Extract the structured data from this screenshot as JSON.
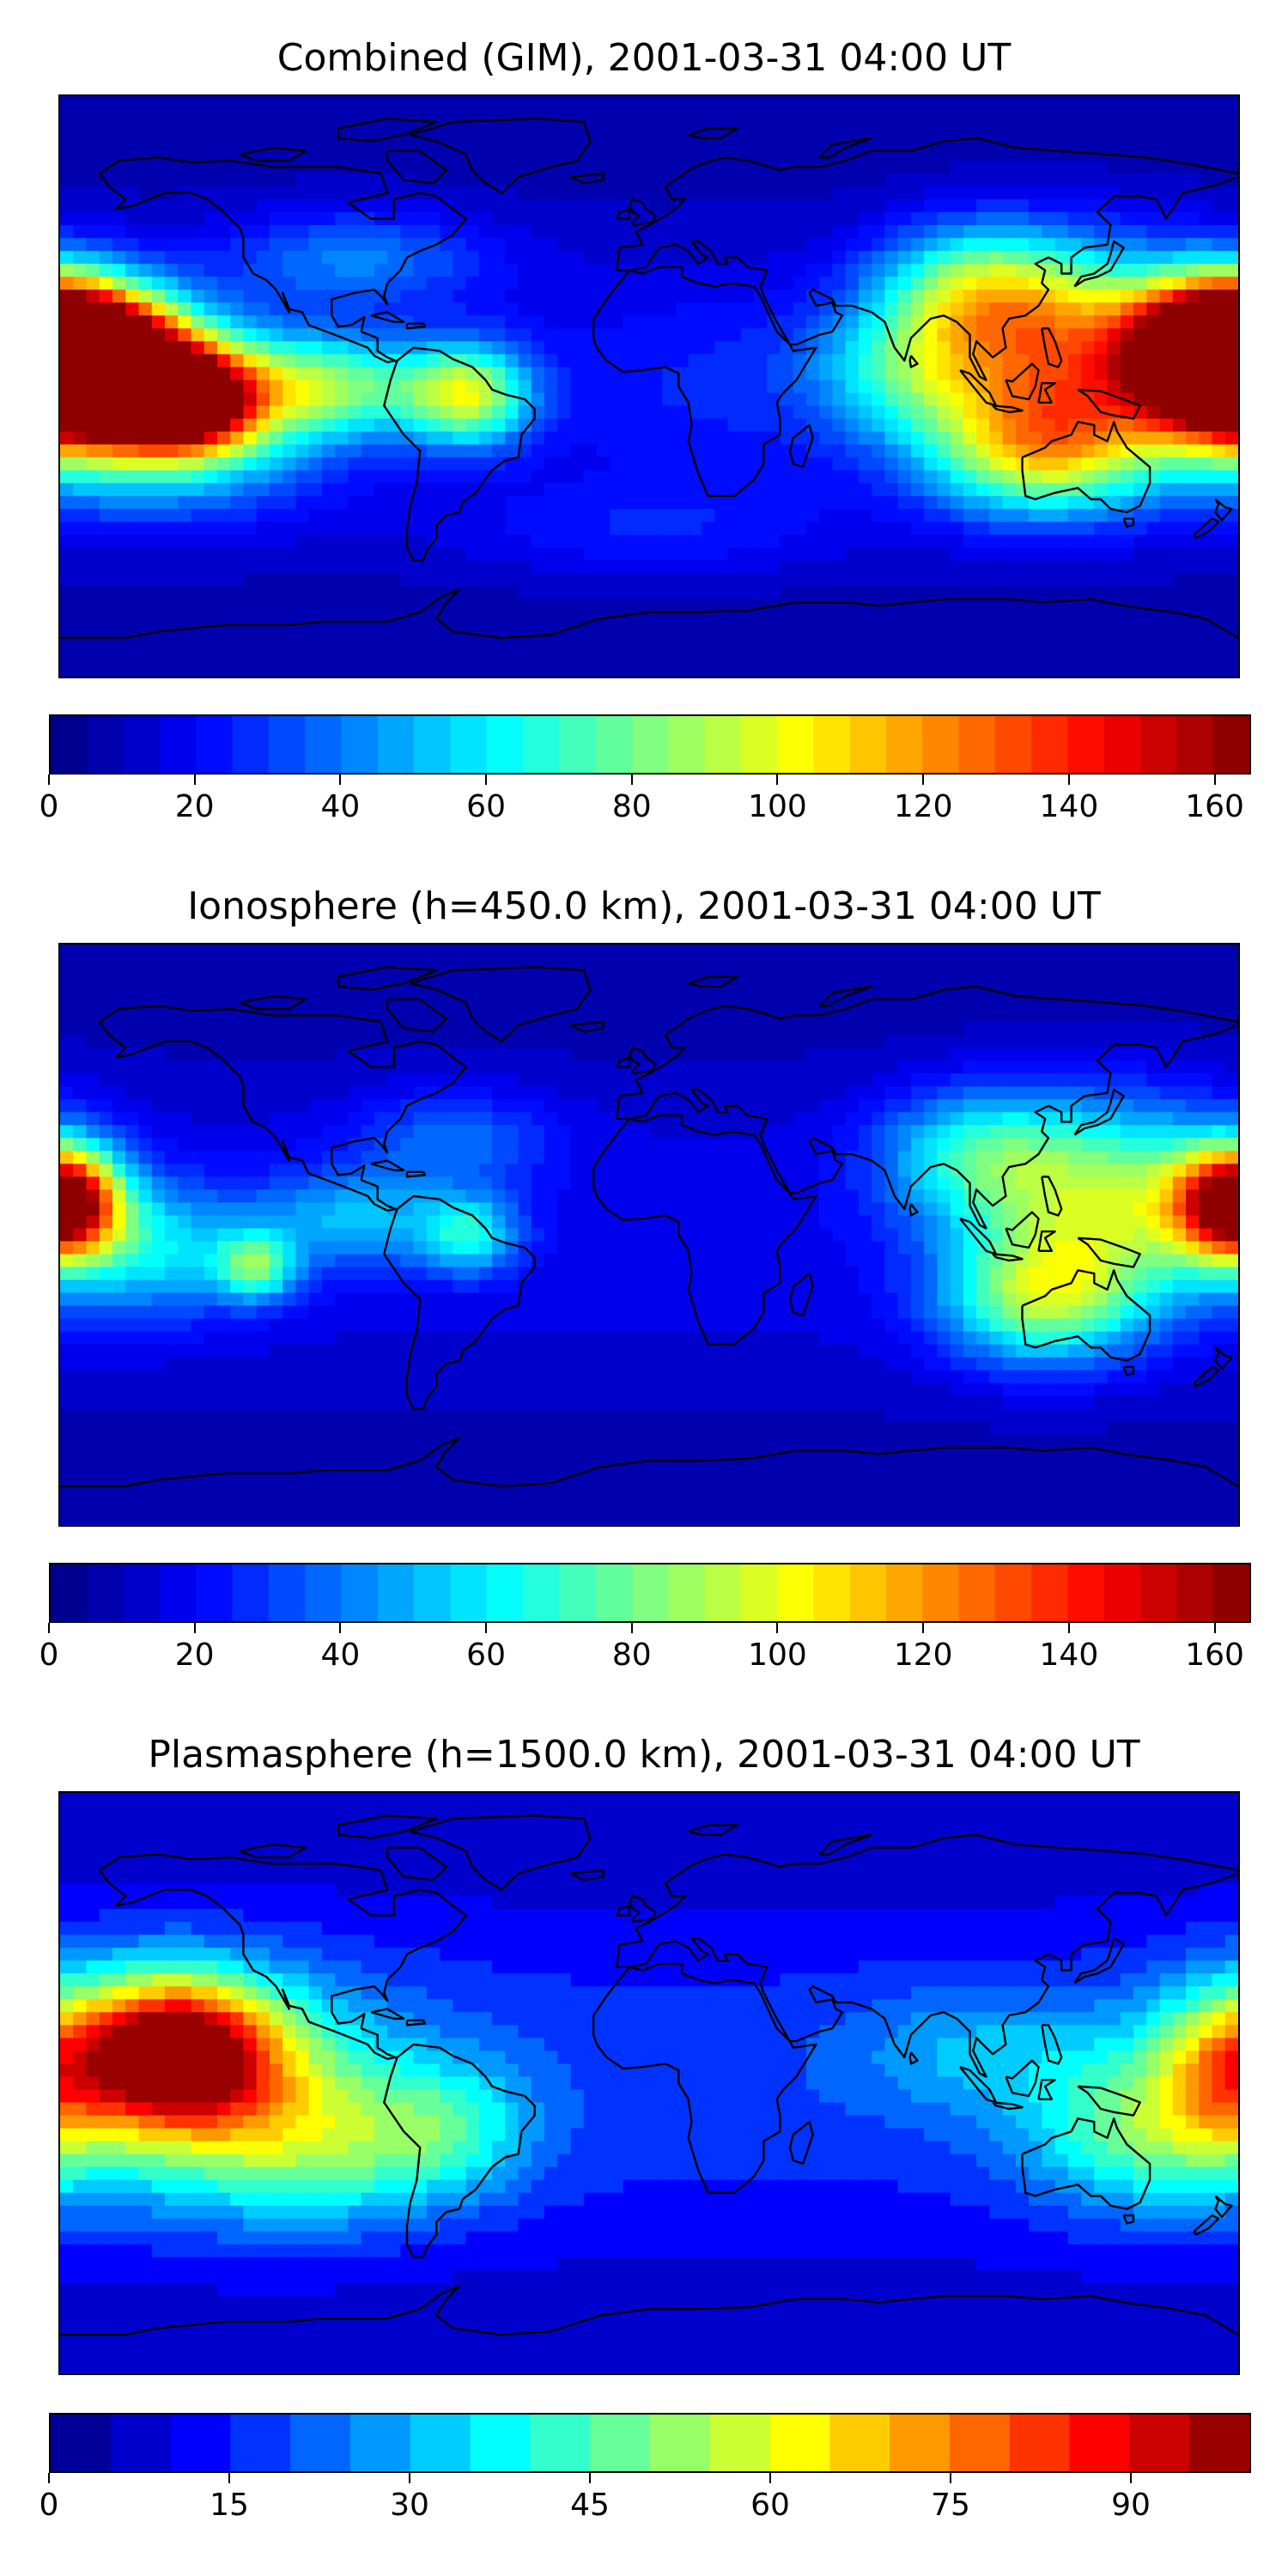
{
  "panels": [
    {
      "title": "Combined (GIM), 2001-03-31 04:00 UT",
      "colorbar": {
        "min": 0,
        "max": 165,
        "levels": 33,
        "ticks": [
          "0",
          "20",
          "40",
          "60",
          "80",
          "100",
          "120",
          "140",
          "160"
        ],
        "tick_values": [
          0,
          20,
          40,
          60,
          80,
          100,
          120,
          140,
          160
        ]
      },
      "blobs": [
        {
          "lon": -180,
          "lat": 10,
          "value": 140,
          "rlon": 28,
          "rlat": 22
        },
        {
          "lon": -160,
          "lat": 5,
          "value": 120,
          "rlon": 25,
          "rlat": 20
        },
        {
          "lon": -140,
          "lat": -5,
          "value": 110,
          "rlon": 18,
          "rlat": 14
        },
        {
          "lon": -150,
          "lat": -10,
          "value": 85,
          "rlon": 45,
          "rlat": 25
        },
        {
          "lon": -100,
          "lat": 0,
          "value": 70,
          "rlon": 40,
          "rlat": 15
        },
        {
          "lon": -55,
          "lat": -3,
          "value": 80,
          "rlon": 18,
          "rlat": 15
        },
        {
          "lon": -90,
          "lat": 40,
          "value": 40,
          "rlon": 40,
          "rlat": 15
        },
        {
          "lon": 175,
          "lat": 10,
          "value": 155,
          "rlon": 25,
          "rlat": 20
        },
        {
          "lon": 130,
          "lat": 10,
          "value": 100,
          "rlon": 40,
          "rlat": 30
        },
        {
          "lon": 120,
          "lat": -20,
          "value": 85,
          "rlon": 35,
          "rlat": 20
        },
        {
          "lon": 100,
          "lat": 30,
          "value": 70,
          "rlon": 30,
          "rlat": 20
        },
        {
          "lon": 80,
          "lat": 5,
          "value": 55,
          "rlon": 30,
          "rlat": 20
        },
        {
          "lon": 20,
          "lat": 0,
          "value": 20,
          "rlon": 40,
          "rlat": 30
        },
        {
          "lon": 0,
          "lat": -45,
          "value": 25,
          "rlon": 60,
          "rlat": 15
        }
      ]
    },
    {
      "title": "Ionosphere  (h=450.0 km), 2001-03-31 04:00 UT",
      "colorbar": {
        "min": 0,
        "max": 165,
        "levels": 33,
        "ticks": [
          "0",
          "20",
          "40",
          "60",
          "80",
          "100",
          "120",
          "140",
          "160"
        ],
        "tick_values": [
          0,
          20,
          40,
          60,
          80,
          100,
          120,
          140,
          160
        ]
      },
      "blobs": [
        {
          "lon": 178,
          "lat": 10,
          "value": 105,
          "rlon": 20,
          "rlat": 18
        },
        {
          "lon": 140,
          "lat": 10,
          "value": 80,
          "rlon": 40,
          "rlat": 30
        },
        {
          "lon": 120,
          "lat": -20,
          "value": 75,
          "rlon": 30,
          "rlat": 20
        },
        {
          "lon": 100,
          "lat": 25,
          "value": 55,
          "rlon": 30,
          "rlat": 20
        },
        {
          "lon": -178,
          "lat": 10,
          "value": 80,
          "rlon": 15,
          "rlat": 15
        },
        {
          "lon": -150,
          "lat": -5,
          "value": 50,
          "rlon": 30,
          "rlat": 20
        },
        {
          "lon": -120,
          "lat": -10,
          "value": 65,
          "rlon": 12,
          "rlat": 10
        },
        {
          "lon": -55,
          "lat": 0,
          "value": 55,
          "rlon": 15,
          "rlat": 12
        },
        {
          "lon": -90,
          "lat": 5,
          "value": 45,
          "rlon": 30,
          "rlat": 15
        },
        {
          "lon": -60,
          "lat": 30,
          "value": 35,
          "rlon": 30,
          "rlat": 15
        }
      ]
    },
    {
      "title": "Plasmasphere (h=1500.0 km), 2001-03-31 04:00 UT",
      "colorbar": {
        "min": 0,
        "max": 100,
        "levels": 20,
        "ticks": [
          "0",
          "15",
          "30",
          "45",
          "60",
          "75",
          "90"
        ],
        "tick_values": [
          0,
          15,
          30,
          45,
          60,
          75,
          90
        ]
      },
      "blobs": [
        {
          "lon": -145,
          "lat": 10,
          "value": 85,
          "rlon": 30,
          "rlat": 22
        },
        {
          "lon": -140,
          "lat": 0,
          "value": 45,
          "rlon": 60,
          "rlat": 35
        },
        {
          "lon": -100,
          "lat": -20,
          "value": 35,
          "rlon": 40,
          "rlat": 25
        },
        {
          "lon": -60,
          "lat": -15,
          "value": 30,
          "rlon": 25,
          "rlat": 20
        },
        {
          "lon": 150,
          "lat": -15,
          "value": 38,
          "rlon": 35,
          "rlat": 25
        },
        {
          "lon": 175,
          "lat": 5,
          "value": 40,
          "rlon": 20,
          "rlat": 25
        },
        {
          "lon": 100,
          "lat": 10,
          "value": 25,
          "rlon": 40,
          "rlat": 20
        }
      ]
    }
  ]
}
